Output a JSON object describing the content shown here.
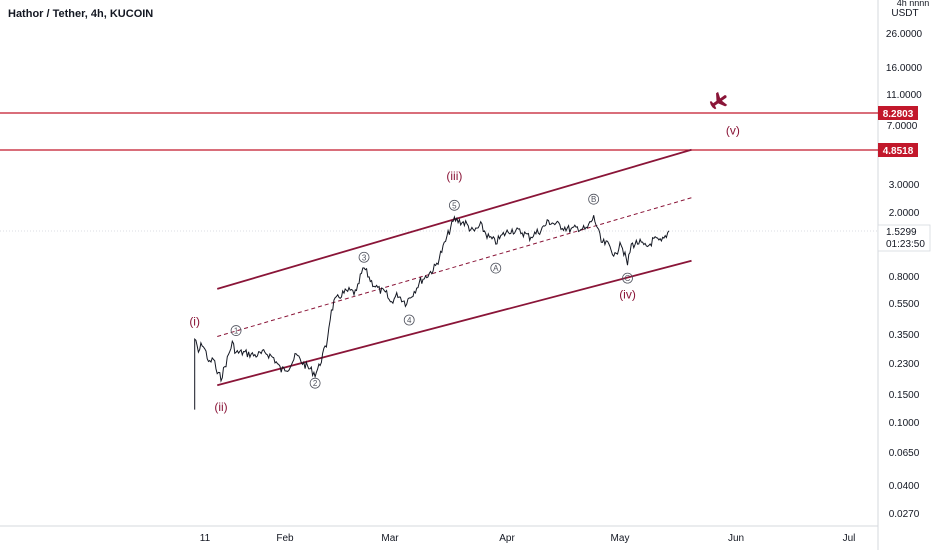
{
  "header": {
    "title": "Hathor / Tether, 4h, KUCOIN"
  },
  "price_axis": {
    "unit_top": "4h nnnn",
    "unit": "USDT",
    "ticks": [
      "26.0000",
      "16.0000",
      "11.0000",
      "7.0000",
      "3.0000",
      "2.0000",
      "0.8000",
      "0.5500",
      "0.3500",
      "0.2300",
      "0.1500",
      "0.1000",
      "0.0650",
      "0.0400",
      "0.0270"
    ],
    "current_price": "1.5299",
    "countdown": "01:23:50",
    "levels": [
      "8.2803",
      "4.8518"
    ]
  },
  "time_axis": {
    "ticks": [
      "11",
      "Feb",
      "Mar",
      "Apr",
      "May",
      "Jun",
      "Jul"
    ]
  },
  "annotations": {
    "wave_i": "(i)",
    "wave_ii": "(ii)",
    "wave_iii": "(iii)",
    "wave_iv": "(iv)",
    "wave_v": "(v)",
    "sub_1": "1",
    "sub_2": "2",
    "sub_3": "3",
    "sub_4": "4",
    "sub_5": "5",
    "sub_a": "A",
    "sub_b": "B",
    "sub_c": "C"
  },
  "colors": {
    "accent": "#8a1538",
    "level_line": "#c2182b",
    "candle": "#131722",
    "axis_text": "#131722",
    "grid": "#f0f3fa"
  },
  "icons": {
    "target": "airplane-icon"
  },
  "chart_data": {
    "type": "line",
    "title": "Hathor / Tether, 4h, KUCOIN",
    "ylabel": "USDT",
    "y_scale": "log",
    "ylim": [
      0.022,
      42
    ],
    "xlim": [
      "2021-01-04",
      "2021-07-08"
    ],
    "grid": true,
    "legend": "none",
    "series": [
      {
        "values": [
          [
            "2021-01-08",
            0.12
          ],
          [
            "2021-01-08",
            0.33
          ],
          [
            "2021-01-09",
            0.27
          ],
          [
            "2021-01-10",
            0.31
          ],
          [
            "2021-01-11",
            0.27
          ],
          [
            "2021-01-12",
            0.23
          ],
          [
            "2021-01-13",
            0.25
          ],
          [
            "2021-01-14",
            0.2
          ],
          [
            "2021-01-15",
            0.19
          ],
          [
            "2021-01-16",
            0.22
          ],
          [
            "2021-01-18",
            0.31
          ],
          [
            "2021-01-19",
            0.27
          ],
          [
            "2021-01-21",
            0.27
          ],
          [
            "2021-01-24",
            0.26
          ],
          [
            "2021-01-27",
            0.27
          ],
          [
            "2021-01-29",
            0.25
          ],
          [
            "2021-01-31",
            0.21
          ],
          [
            "2021-02-02",
            0.22
          ],
          [
            "2021-02-04",
            0.26
          ],
          [
            "2021-02-06",
            0.23
          ],
          [
            "2021-02-08",
            0.21
          ],
          [
            "2021-02-09",
            0.2
          ],
          [
            "2021-02-10",
            0.22
          ],
          [
            "2021-02-11",
            0.26
          ],
          [
            "2021-02-12",
            0.3
          ],
          [
            "2021-02-13",
            0.45
          ],
          [
            "2021-02-14",
            0.55
          ],
          [
            "2021-02-16",
            0.62
          ],
          [
            "2021-02-18",
            0.65
          ],
          [
            "2021-02-20",
            0.63
          ],
          [
            "2021-02-21",
            0.79
          ],
          [
            "2021-02-22",
            0.9
          ],
          [
            "2021-02-24",
            0.74
          ],
          [
            "2021-02-26",
            0.66
          ],
          [
            "2021-02-28",
            0.62
          ],
          [
            "2021-03-01",
            0.55
          ],
          [
            "2021-03-03",
            0.62
          ],
          [
            "2021-03-05",
            0.55
          ],
          [
            "2021-03-07",
            0.63
          ],
          [
            "2021-03-09",
            0.75
          ],
          [
            "2021-03-11",
            0.82
          ],
          [
            "2021-03-13",
            0.92
          ],
          [
            "2021-03-15",
            1.2
          ],
          [
            "2021-03-17",
            1.6
          ],
          [
            "2021-03-18",
            1.8
          ],
          [
            "2021-03-21",
            1.7
          ],
          [
            "2021-03-23",
            1.5
          ],
          [
            "2021-03-25",
            1.65
          ],
          [
            "2021-03-27",
            1.4
          ],
          [
            "2021-03-29",
            1.3
          ],
          [
            "2021-03-31",
            1.45
          ],
          [
            "2021-04-02",
            1.55
          ],
          [
            "2021-04-05",
            1.5
          ],
          [
            "2021-04-07",
            1.4
          ],
          [
            "2021-04-10",
            1.55
          ],
          [
            "2021-04-12",
            1.75
          ],
          [
            "2021-04-15",
            1.65
          ],
          [
            "2021-04-18",
            1.55
          ],
          [
            "2021-04-20",
            1.6
          ],
          [
            "2021-04-22",
            1.55
          ],
          [
            "2021-04-24",
            1.85
          ],
          [
            "2021-04-25",
            1.6
          ],
          [
            "2021-04-26",
            1.3
          ],
          [
            "2021-04-28",
            1.25
          ],
          [
            "2021-04-30",
            1.05
          ],
          [
            "2021-05-01",
            1.35
          ],
          [
            "2021-05-03",
            0.95
          ],
          [
            "2021-05-04",
            1.25
          ],
          [
            "2021-05-06",
            1.3
          ],
          [
            "2021-05-08",
            1.2
          ],
          [
            "2021-05-10",
            1.35
          ],
          [
            "2021-05-12",
            1.3
          ],
          [
            "2021-05-13",
            1.4
          ],
          [
            "2021-05-14",
            1.53
          ]
        ]
      }
    ],
    "horizontal_levels": [
      8.2803,
      4.8518
    ],
    "channel_lines": {
      "upper": [
        [
          "2021-01-14",
          0.67
        ],
        [
          "2021-05-20",
          4.85
        ]
      ],
      "lower": [
        [
          "2021-01-14",
          0.17
        ],
        [
          "2021-05-20",
          1.0
        ]
      ],
      "mid": [
        [
          "2021-01-14",
          0.34
        ],
        [
          "2021-05-20",
          2.45
        ]
      ]
    },
    "wave_labels": [
      {
        "text": "(i)",
        "x": "2021-01-08",
        "y": 0.42
      },
      {
        "text": "(ii)",
        "x": "2021-01-15",
        "y": 0.125
      },
      {
        "text": "(iii)",
        "x": "2021-03-18",
        "y": 3.35
      },
      {
        "text": "(iv)",
        "x": "2021-05-03",
        "y": 0.62
      },
      {
        "text": "(v)",
        "x": "2021-05-31",
        "y": 6.4
      },
      {
        "text": "1",
        "x": "2021-01-19",
        "y": 0.37
      },
      {
        "text": "2",
        "x": "2021-02-09",
        "y": 0.175
      },
      {
        "text": "3",
        "x": "2021-02-22",
        "y": 1.05
      },
      {
        "text": "4",
        "x": "2021-03-06",
        "y": 0.43
      },
      {
        "text": "5",
        "x": "2021-03-18",
        "y": 2.2
      },
      {
        "text": "A",
        "x": "2021-03-29",
        "y": 0.9
      },
      {
        "text": "B",
        "x": "2021-04-24",
        "y": 2.4
      },
      {
        "text": "C",
        "x": "2021-05-03",
        "y": 0.78
      }
    ]
  }
}
